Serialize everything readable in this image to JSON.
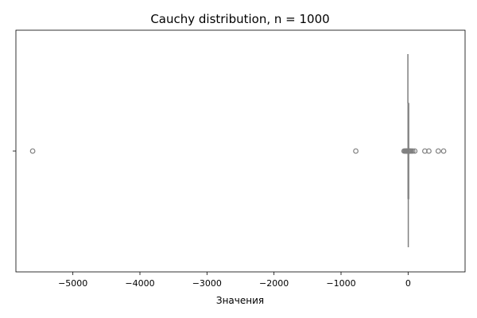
{
  "chart_data": {
    "type": "box",
    "orientation": "horizontal",
    "title": "Cauchy distribution, n = 1000",
    "xlabel": "Значения",
    "ylabel": "",
    "xlim": [
      -5850,
      850
    ],
    "xticks": [
      -5000,
      -4000,
      -3000,
      -2000,
      -1000,
      0
    ],
    "xtick_labels": [
      "−5000",
      "−4000",
      "−3000",
      "−2000",
      "−1000",
      "0"
    ],
    "yticks": [
      ""
    ],
    "grid": false,
    "box": {
      "q1": -1,
      "median": 0,
      "q3": 1,
      "whisker_low": -3,
      "whisker_high": 3
    },
    "outliers": [
      -5600,
      -780,
      -60,
      -45,
      -35,
      -25,
      -15,
      -8,
      8,
      15,
      25,
      35,
      50,
      70,
      100,
      250,
      310,
      450,
      530
    ],
    "colors": {
      "box": "#808080",
      "outlier": "#808080",
      "axes": "#000000"
    }
  }
}
